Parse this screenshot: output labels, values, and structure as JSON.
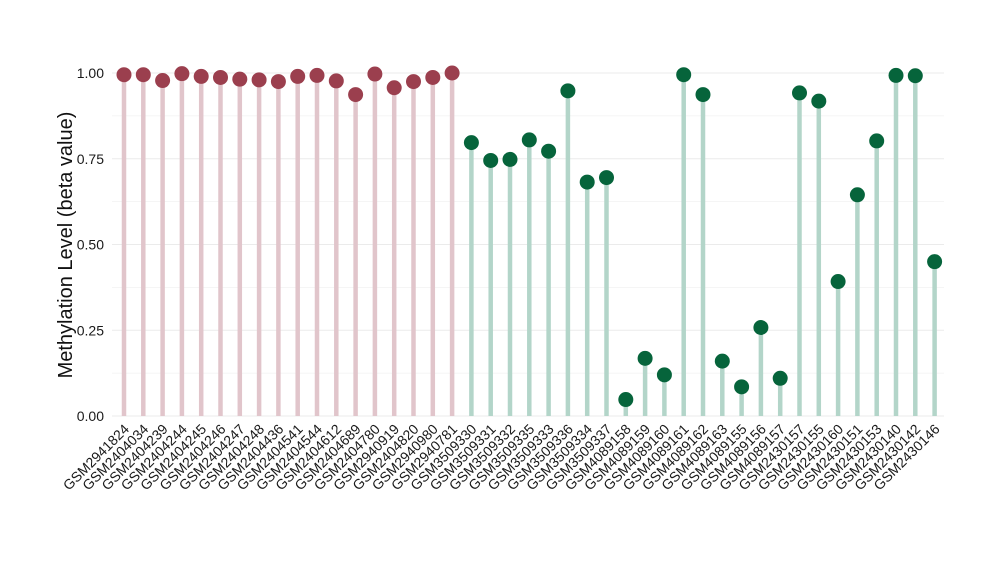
{
  "chart_data": {
    "type": "lollipop",
    "ylabel": "Methylation Level (beta value)",
    "ylim": [
      0,
      1
    ],
    "y_ticks": [
      "0.00",
      "0.25",
      "0.50",
      "0.75",
      "1.00"
    ],
    "grid": true,
    "colors": {
      "group1_point": "#9b3f4e",
      "group1_stem": "#e1c5cb",
      "group2_point": "#06643b",
      "group2_stem": "#b3d5c9",
      "grid": "#ebebeb"
    },
    "points": [
      {
        "sample": "GSM2941824",
        "value": 0.995,
        "group": 1
      },
      {
        "sample": "GSM2404034",
        "value": 0.995,
        "group": 1
      },
      {
        "sample": "GSM2404239",
        "value": 0.978,
        "group": 1
      },
      {
        "sample": "GSM2404244",
        "value": 0.998,
        "group": 1
      },
      {
        "sample": "GSM2404245",
        "value": 0.99,
        "group": 1
      },
      {
        "sample": "GSM2404246",
        "value": 0.987,
        "group": 1
      },
      {
        "sample": "GSM2404247",
        "value": 0.982,
        "group": 1
      },
      {
        "sample": "GSM2404248",
        "value": 0.98,
        "group": 1
      },
      {
        "sample": "GSM2404436",
        "value": 0.975,
        "group": 1
      },
      {
        "sample": "GSM2404541",
        "value": 0.99,
        "group": 1
      },
      {
        "sample": "GSM2404544",
        "value": 0.993,
        "group": 1
      },
      {
        "sample": "GSM2404612",
        "value": 0.977,
        "group": 1
      },
      {
        "sample": "GSM2404689",
        "value": 0.937,
        "group": 1
      },
      {
        "sample": "GSM2404780",
        "value": 0.997,
        "group": 1
      },
      {
        "sample": "GSM2940919",
        "value": 0.957,
        "group": 1
      },
      {
        "sample": "GSM2404820",
        "value": 0.975,
        "group": 1
      },
      {
        "sample": "GSM2940980",
        "value": 0.987,
        "group": 1
      },
      {
        "sample": "GSM2940781",
        "value": 1.0,
        "group": 1
      },
      {
        "sample": "GSM3509330",
        "value": 0.797,
        "group": 2
      },
      {
        "sample": "GSM3509331",
        "value": 0.745,
        "group": 2
      },
      {
        "sample": "GSM3509332",
        "value": 0.748,
        "group": 2
      },
      {
        "sample": "GSM3509335",
        "value": 0.805,
        "group": 2
      },
      {
        "sample": "GSM3509333",
        "value": 0.772,
        "group": 2
      },
      {
        "sample": "GSM3509336",
        "value": 0.948,
        "group": 2
      },
      {
        "sample": "GSM3509334",
        "value": 0.682,
        "group": 2
      },
      {
        "sample": "GSM3509337",
        "value": 0.695,
        "group": 2
      },
      {
        "sample": "GSM4089158",
        "value": 0.048,
        "group": 2
      },
      {
        "sample": "GSM4089159",
        "value": 0.168,
        "group": 2
      },
      {
        "sample": "GSM4089160",
        "value": 0.12,
        "group": 2
      },
      {
        "sample": "GSM4089161",
        "value": 0.995,
        "group": 2
      },
      {
        "sample": "GSM4089162",
        "value": 0.937,
        "group": 2
      },
      {
        "sample": "GSM4089163",
        "value": 0.16,
        "group": 2
      },
      {
        "sample": "GSM4089155",
        "value": 0.085,
        "group": 2
      },
      {
        "sample": "GSM4089156",
        "value": 0.258,
        "group": 2
      },
      {
        "sample": "GSM4089157",
        "value": 0.11,
        "group": 2
      },
      {
        "sample": "GSM2430157",
        "value": 0.942,
        "group": 2
      },
      {
        "sample": "GSM2430155",
        "value": 0.918,
        "group": 2
      },
      {
        "sample": "GSM2430160",
        "value": 0.392,
        "group": 2
      },
      {
        "sample": "GSM2430151",
        "value": 0.645,
        "group": 2
      },
      {
        "sample": "GSM2430153",
        "value": 0.802,
        "group": 2
      },
      {
        "sample": "GSM2430140",
        "value": 0.993,
        "group": 2
      },
      {
        "sample": "GSM2430142",
        "value": 0.992,
        "group": 2
      },
      {
        "sample": "GSM2430146",
        "value": 0.45,
        "group": 2
      }
    ]
  }
}
